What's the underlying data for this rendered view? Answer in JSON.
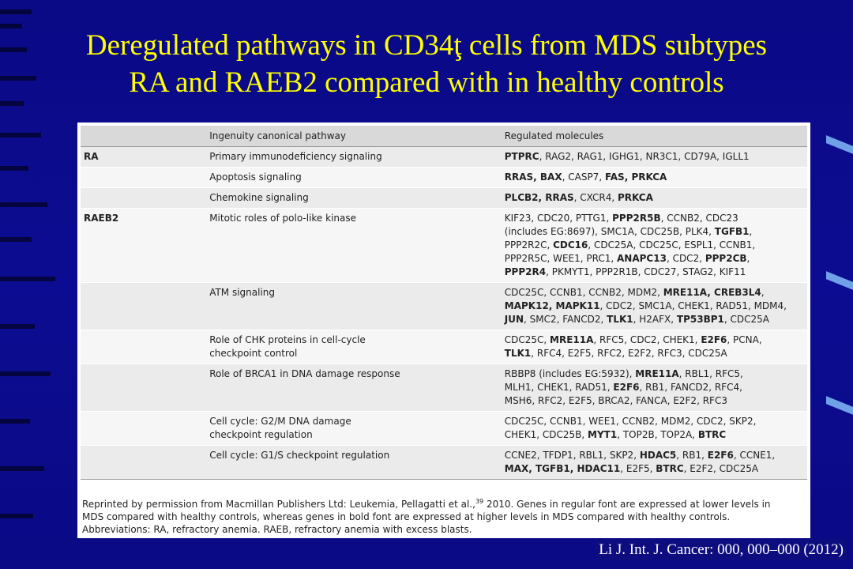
{
  "title": {
    "line1": "Deregulated pathways in CD34ţ cells from MDS subtypes",
    "line2": "RA and RAEB2 compared with in healthy controls"
  },
  "table": {
    "headers": [
      "",
      "Ingenuity canonical pathway",
      "Regulated molecules"
    ],
    "rows": [
      {
        "group": "RA",
        "pathway": "Primary immunodeficiency signaling",
        "molecules": [
          [
            {
              "t": "PTPRC",
              "b": true
            },
            {
              "t": ", RAG2, RAG1, IGHG1, NR3C1, CD79A, IGLL1",
              "b": false
            }
          ]
        ]
      },
      {
        "group": "",
        "pathway": "Apoptosis signaling",
        "molecules": [
          [
            {
              "t": "RRAS, BAX",
              "b": true
            },
            {
              "t": ", CASP7, ",
              "b": false
            },
            {
              "t": "FAS, PRKCA",
              "b": true
            }
          ]
        ]
      },
      {
        "group": "",
        "pathway": "Chemokine signaling",
        "molecules": [
          [
            {
              "t": "PLCB2, RRAS",
              "b": true
            },
            {
              "t": ", CXCR4, ",
              "b": false
            },
            {
              "t": "PRKCA",
              "b": true
            }
          ]
        ]
      },
      {
        "group": "RAEB2",
        "pathway": "Mitotic roles of polo-like kinase",
        "molecules": [
          [
            {
              "t": "KIF23, CDC20, PTTG1, ",
              "b": false
            },
            {
              "t": "PPP2R5B",
              "b": true
            },
            {
              "t": ", CCNB2, CDC23",
              "b": false
            }
          ],
          [
            {
              "t": "(includes EG:8697), SMC1A, CDC25B, PLK4, ",
              "b": false
            },
            {
              "t": "TGFB1",
              "b": true
            },
            {
              "t": ",",
              "b": false
            }
          ],
          [
            {
              "t": "PPP2R2C, ",
              "b": false
            },
            {
              "t": "CDC16",
              "b": true
            },
            {
              "t": ", CDC25A, CDC25C, ESPL1, CCNB1,",
              "b": false
            }
          ],
          [
            {
              "t": "PPP2R5C, WEE1, PRC1, ",
              "b": false
            },
            {
              "t": "ANAPC13",
              "b": true
            },
            {
              "t": ", CDC2, ",
              "b": false
            },
            {
              "t": "PPP2CB",
              "b": true
            },
            {
              "t": ",",
              "b": false
            }
          ],
          [
            {
              "t": "PPP2R4",
              "b": true
            },
            {
              "t": ", PKMYT1, PPP2R1B, CDC27, STAG2, KIF11",
              "b": false
            }
          ]
        ]
      },
      {
        "group": "",
        "pathway": "ATM signaling",
        "molecules": [
          [
            {
              "t": "CDC25C, CCNB1, CCNB2, MDM2, ",
              "b": false
            },
            {
              "t": "MRE11A, CREB3L4",
              "b": true
            },
            {
              "t": ",",
              "b": false
            }
          ],
          [
            {
              "t": "MAPK12, MAPK11",
              "b": true
            },
            {
              "t": ", CDC2, SMC1A, CHEK1, RAD51, MDM4,",
              "b": false
            }
          ],
          [
            {
              "t": "JUN",
              "b": true
            },
            {
              "t": ", SMC2, FANCD2, ",
              "b": false
            },
            {
              "t": "TLK1",
              "b": true
            },
            {
              "t": ", H2AFX, ",
              "b": false
            },
            {
              "t": "TP53BP1",
              "b": true
            },
            {
              "t": ", CDC25A",
              "b": false
            }
          ]
        ]
      },
      {
        "group": "",
        "pathway": "Role of CHK proteins in cell-cycle|checkpoint control",
        "molecules": [
          [
            {
              "t": "CDC25C, ",
              "b": false
            },
            {
              "t": "MRE11A",
              "b": true
            },
            {
              "t": ", RFC5, CDC2, CHEK1, ",
              "b": false
            },
            {
              "t": "E2F6",
              "b": true
            },
            {
              "t": ", PCNA,",
              "b": false
            }
          ],
          [
            {
              "t": "TLK1",
              "b": true
            },
            {
              "t": ", RFC4, E2F5, RFC2, E2F2, RFC3, CDC25A",
              "b": false
            }
          ]
        ]
      },
      {
        "group": "",
        "pathway": "Role of BRCA1 in DNA damage response",
        "molecules": [
          [
            {
              "t": "RBBP8 (includes EG:5932), ",
              "b": false
            },
            {
              "t": "MRE11A",
              "b": true
            },
            {
              "t": ", RBL1, RFC5,",
              "b": false
            }
          ],
          [
            {
              "t": "MLH1, CHEK1, RAD51, ",
              "b": false
            },
            {
              "t": "E2F6",
              "b": true
            },
            {
              "t": ", RB1, FANCD2, RFC4,",
              "b": false
            }
          ],
          [
            {
              "t": "MSH6, RFC2, E2F5, BRCA2, FANCA, E2F2, RFC3",
              "b": false
            }
          ]
        ]
      },
      {
        "group": "",
        "pathway": "Cell cycle: G2/M DNA damage|checkpoint regulation",
        "molecules": [
          [
            {
              "t": "CDC25C, CCNB1, WEE1, CCNB2, MDM2, CDC2, SKP2,",
              "b": false
            }
          ],
          [
            {
              "t": "CHEK1, CDC25B, ",
              "b": false
            },
            {
              "t": "MYT1",
              "b": true
            },
            {
              "t": ", TOP2B, TOP2A, ",
              "b": false
            },
            {
              "t": "BTRC",
              "b": true
            }
          ]
        ]
      },
      {
        "group": "",
        "pathway": "Cell cycle: G1/S checkpoint regulation",
        "molecules": [
          [
            {
              "t": "CCNE2, TFDP1, RBL1, SKP2, ",
              "b": false
            },
            {
              "t": "HDAC5",
              "b": true
            },
            {
              "t": ", RB1, ",
              "b": false
            },
            {
              "t": "E2F6",
              "b": true
            },
            {
              "t": ", CCNE1,",
              "b": false
            }
          ],
          [
            {
              "t": "MAX, TGFB1, HDAC11",
              "b": true
            },
            {
              "t": ", E2F5, ",
              "b": false
            },
            {
              "t": "BTRC",
              "b": true
            },
            {
              "t": ", E2F2, CDC25A",
              "b": false
            }
          ]
        ]
      }
    ]
  },
  "footnote": {
    "part1": "Reprinted by permission from Macmillan Publishers Ltd: Leukemia, Pellagatti et al.,",
    "ref": "39",
    "part2": " 2010. Genes in regular font are expressed at lower levels in",
    "line2": "MDS compared with healthy controls, whereas genes in bold font are expressed at higher levels in MDS compared with healthy controls.",
    "line3": "Abbreviations: RA, refractory anemia. RAEB, refractory anemia with excess blasts."
  },
  "citation": "Li J. Int. J. Cancer: 000, 000–000 (2012)",
  "colors": {
    "background": "#0b0b8a",
    "title": "#ffff00",
    "panel": "#ffffff"
  }
}
